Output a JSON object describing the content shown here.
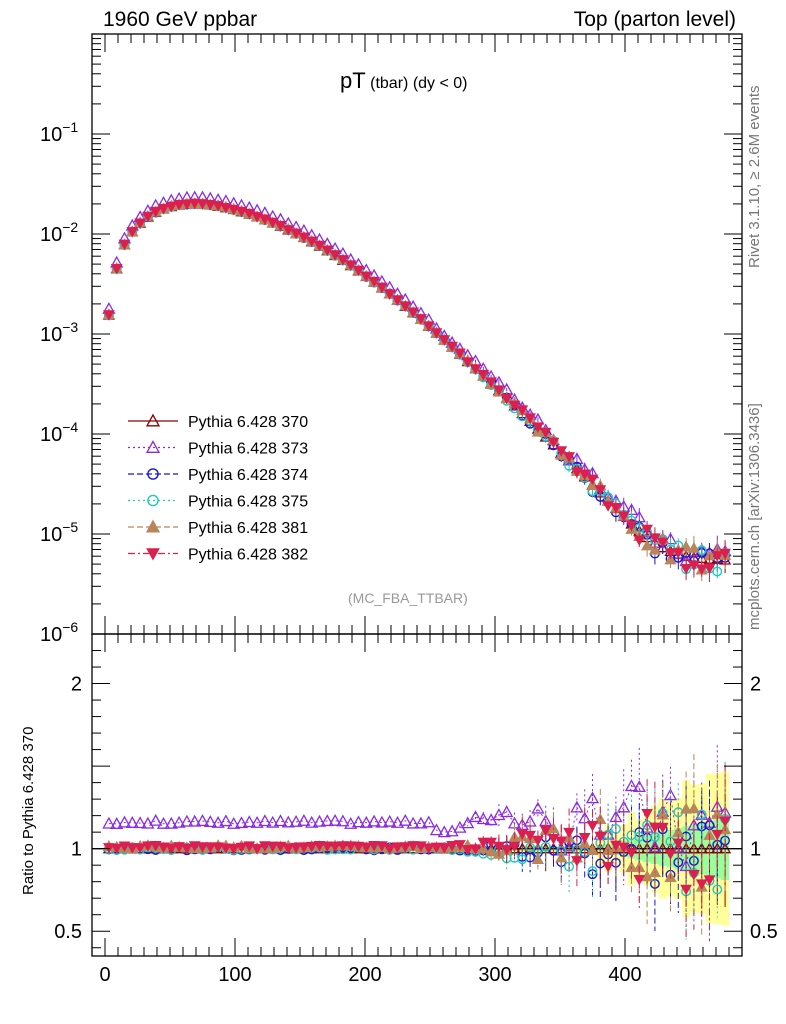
{
  "header": {
    "left": "1960 GeV ppbar",
    "right": "Top (parton level)"
  },
  "side_labels": {
    "rivet": "Rivet 3.1.10, ≥ 2.6M events",
    "mcplots": "mcplots.cern.ch [arXiv:1306.3436]"
  },
  "plot_title": {
    "main": "pT",
    "sub": " (tbar) ",
    "cut": "(dy < 0)"
  },
  "watermark": "(MC_FBA_TTBAR)",
  "colors": {
    "s370": "#8b0000",
    "s373": "#8a2be2",
    "s374": "#1818d0",
    "s375": "#20c8c0",
    "s381": "#b8865b",
    "s382": "#dc1f4e",
    "band_yellow": "#ffff99",
    "band_green": "#99ff99"
  },
  "chart_data": [
    {
      "type": "scatter",
      "panel": "main",
      "yscale": "log",
      "xlim": [
        -10,
        490
      ],
      "ylim": [
        1e-06,
        1
      ],
      "yticks": [
        "10^-6",
        "10^-5",
        "10^-4",
        "10^-3",
        "10^-2",
        "10^-1"
      ],
      "xticks": [
        0,
        100,
        200,
        300,
        400
      ],
      "x": [
        3,
        9,
        15,
        21,
        27,
        33,
        39,
        45,
        51,
        57,
        63,
        69,
        75,
        81,
        87,
        93,
        99,
        105,
        111,
        117,
        123,
        129,
        135,
        141,
        147,
        153,
        159,
        165,
        171,
        177,
        183,
        189,
        195,
        201,
        207,
        213,
        219,
        225,
        231,
        237,
        243,
        249,
        255,
        261,
        267,
        273,
        279,
        285,
        291,
        297,
        303,
        309,
        315,
        321,
        327,
        333,
        339,
        345,
        351,
        357,
        363,
        369,
        375,
        381,
        387,
        393,
        399,
        405,
        411,
        417,
        423,
        429,
        435,
        441,
        447,
        453,
        459,
        465,
        471,
        477
      ],
      "reference": [
        0.00155,
        0.0045,
        0.0078,
        0.0105,
        0.0128,
        0.0148,
        0.0165,
        0.0178,
        0.0188,
        0.0195,
        0.0199,
        0.02,
        0.0199,
        0.0195,
        0.019,
        0.0183,
        0.0176,
        0.0167,
        0.0158,
        0.0149,
        0.0139,
        0.0129,
        0.012,
        0.011,
        0.0101,
        0.00923,
        0.00838,
        0.00757,
        0.00681,
        0.0061,
        0.00545,
        0.00483,
        0.00428,
        0.00376,
        0.0033,
        0.00289,
        0.00252,
        0.00218,
        0.00189,
        0.00163,
        0.0014,
        0.0012,
        0.00102,
        0.00087,
        0.00074,
        0.00063,
        0.00053,
        0.00045,
        0.00038,
        0.00032,
        0.000272,
        0.000228,
        0.000191,
        0.00016,
        0.000134,
        0.000112,
        9.35e-05,
        7.8e-05,
        6.5e-05,
        5.4e-05,
        4.5e-05,
        3.73e-05,
        3.1e-05,
        2.58e-05,
        2.15e-05,
        1.8e-05,
        1.5e-05,
        1.26e-05,
        1.07e-05,
        9.2e-06,
        8.1e-06,
        7.3e-06,
        6.7e-06,
        6.3e-06,
        6e-06,
        5.8e-06,
        5.7e-06,
        5.6e-06,
        5.6e-06,
        5.5e-06
      ],
      "series": [
        {
          "name": "Pythia 6.428 370",
          "marker": "triangle-open",
          "line": "solid",
          "color": "#8b0000",
          "scale": 1.0
        },
        {
          "name": "Pythia 6.428 373",
          "marker": "triangle-open",
          "line": "dotted",
          "color": "#8a2be2",
          "scale": 1.16
        },
        {
          "name": "Pythia 6.428 374",
          "marker": "circle-open",
          "line": "dashed",
          "color": "#1818d0",
          "scale": 1.0
        },
        {
          "name": "Pythia 6.428 375",
          "marker": "circle-open",
          "line": "dotted",
          "color": "#20c8c0",
          "scale": 1.0
        },
        {
          "name": "Pythia 6.428 381",
          "marker": "triangle-filled",
          "line": "dashed",
          "color": "#b8865b",
          "scale": 1.01
        },
        {
          "name": "Pythia 6.428 382",
          "marker": "triangle-down-filled",
          "line": "dashdot",
          "color": "#dc1f4e",
          "scale": 1.01
        }
      ],
      "legend_position": "lower-left"
    },
    {
      "type": "scatter",
      "panel": "ratio",
      "ylabel": "Ratio to Pythia 6.428 370",
      "xlim": [
        -10,
        490
      ],
      "ylim": [
        0.35,
        2.3
      ],
      "yticks": [
        0.5,
        1,
        2
      ],
      "xticks": [
        0,
        100,
        200,
        300,
        400
      ],
      "reference_line": 1,
      "bands": "yellow / green uncertainty envelopes, widening above x = 380"
    }
  ]
}
